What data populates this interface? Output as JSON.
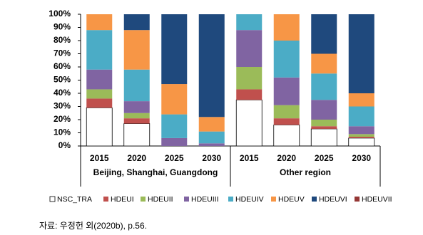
{
  "chart_data": {
    "type": "stacked_bar",
    "groups": [
      {
        "name": "Beijing, Shanghai, Guangdong",
        "categories": [
          "2015",
          "2020",
          "2025",
          "2030"
        ]
      },
      {
        "name": "Other region",
        "categories": [
          "2015",
          "2020",
          "2025",
          "2030"
        ]
      }
    ],
    "series": [
      {
        "name": "NSC_TRA",
        "color": "#ffffff",
        "values": [
          29,
          17,
          0,
          0,
          35,
          16,
          13,
          6
        ]
      },
      {
        "name": "HDEUI",
        "color": "#c0504d",
        "values": [
          7,
          4,
          0,
          0,
          8,
          5,
          2,
          1
        ]
      },
      {
        "name": "HDEUII",
        "color": "#9bbb59",
        "values": [
          7,
          4,
          0,
          0,
          17,
          10,
          5,
          2
        ]
      },
      {
        "name": "HDEUIII",
        "color": "#8064a2",
        "values": [
          15,
          9,
          6,
          2,
          28,
          21,
          15,
          6
        ]
      },
      {
        "name": "HDEUIV",
        "color": "#4bacc6",
        "values": [
          30,
          24,
          18,
          9,
          12,
          28,
          20,
          15
        ]
      },
      {
        "name": "HDEUV",
        "color": "#f79646",
        "values": [
          12,
          30,
          23,
          11,
          0,
          20,
          15,
          10
        ]
      },
      {
        "name": "HDEUVI",
        "color": "#1f497d",
        "values": [
          0,
          12,
          53,
          78,
          0,
          0,
          30,
          60
        ]
      },
      {
        "name": "HDEUVII",
        "color": "#953735",
        "values": [
          0,
          0,
          0,
          0,
          0,
          0,
          0,
          0
        ]
      }
    ],
    "ylim": [
      0,
      100
    ],
    "yticks": [
      {
        "value": 0,
        "label": "0%"
      },
      {
        "value": 10,
        "label": "10%"
      },
      {
        "value": 20,
        "label": "20%"
      },
      {
        "value": 30,
        "label": "30%"
      },
      {
        "value": 40,
        "label": "40%"
      },
      {
        "value": 50,
        "label": "50%"
      },
      {
        "value": 60,
        "label": "60%"
      },
      {
        "value": 70,
        "label": "70%"
      },
      {
        "value": 80,
        "label": "80%"
      },
      {
        "value": 90,
        "label": "90%"
      },
      {
        "value": 100,
        "label": "100%"
      }
    ],
    "source": "자료: 우정헌 외(2020b), p.56."
  }
}
